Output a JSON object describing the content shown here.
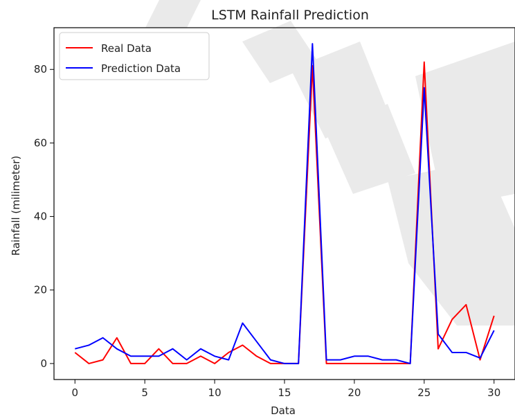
{
  "chart_data": {
    "type": "line",
    "title": "LSTM Rainfall Prediction",
    "xlabel": "Data",
    "ylabel": "Rainfall (milimeter)",
    "xlim": [
      -1.5,
      31.5
    ],
    "ylim": [
      -4.35,
      91.35
    ],
    "xticks": [
      0,
      5,
      10,
      15,
      20,
      25,
      30
    ],
    "yticks": [
      0,
      20,
      40,
      60,
      80
    ],
    "grid": false,
    "legend_position": "top-left",
    "x": [
      0,
      1,
      2,
      3,
      4,
      5,
      6,
      7,
      8,
      9,
      10,
      11,
      12,
      13,
      14,
      15,
      16,
      17,
      18,
      19,
      20,
      21,
      22,
      23,
      24,
      25,
      26,
      27,
      28,
      29,
      30
    ],
    "series": [
      {
        "name": "Real Data",
        "color": "#ff0000",
        "values": [
          3,
          0,
          1,
          7,
          0,
          0,
          4,
          0,
          0,
          2,
          0,
          3,
          5,
          2,
          0,
          0,
          0,
          81,
          0,
          0,
          0,
          0,
          0,
          0,
          0,
          82,
          4,
          12,
          16,
          1,
          13
        ]
      },
      {
        "name": "Prediction Data",
        "color": "#0000ff",
        "values": [
          4,
          5,
          7,
          4,
          2,
          2,
          2,
          4,
          1,
          4,
          2,
          1,
          11,
          6,
          1,
          0,
          0,
          87,
          1,
          1,
          2,
          2,
          1,
          1,
          0,
          75,
          8,
          3,
          3,
          1.5,
          9
        ]
      }
    ]
  }
}
